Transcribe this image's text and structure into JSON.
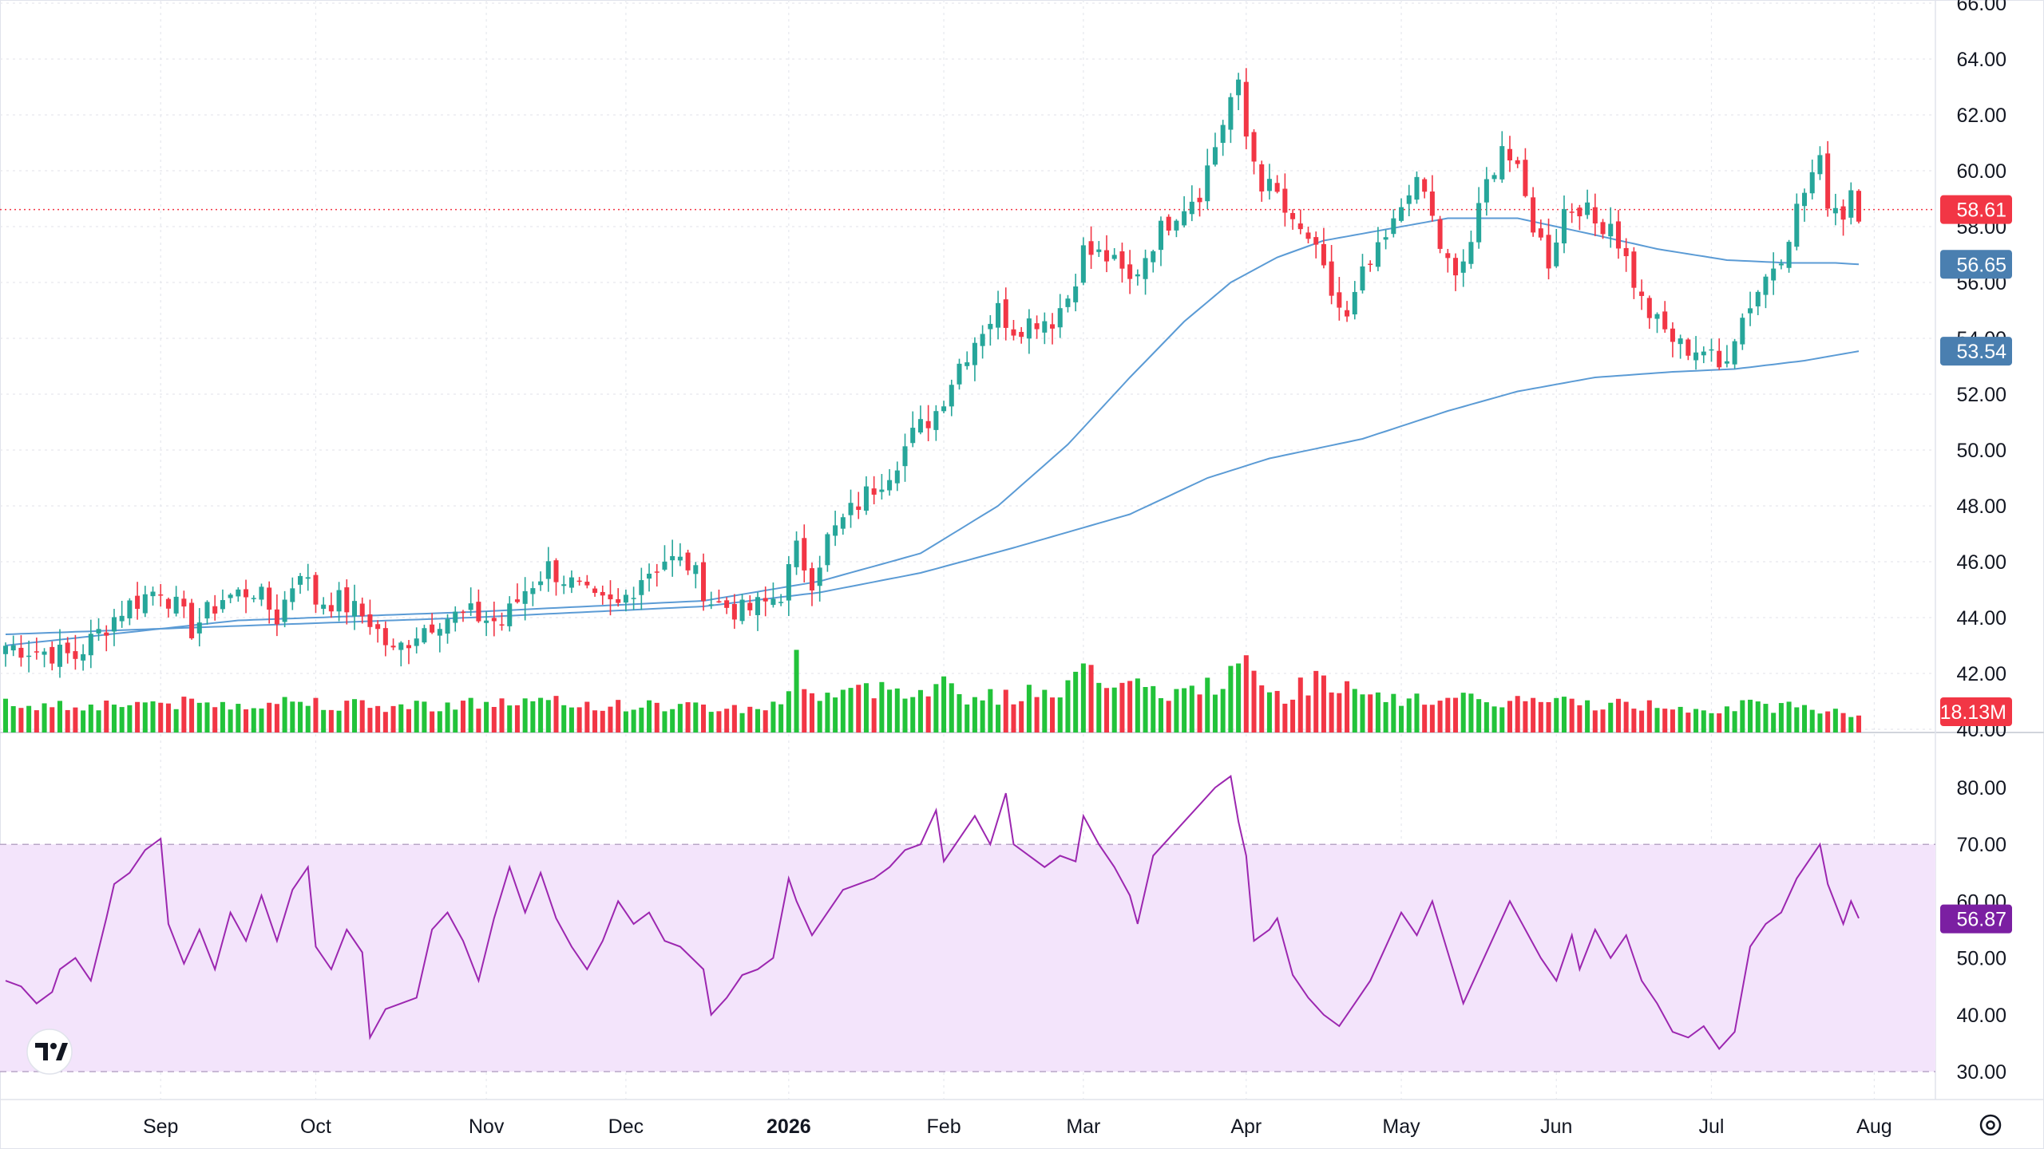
{
  "chart_data": {
    "type": "candlestick",
    "title": "",
    "price_axis": {
      "ylim": [
        40,
        66
      ],
      "ticks": [
        "66.00",
        "64.00",
        "62.00",
        "60.00",
        "58.00",
        "56.00",
        "54.00",
        "52.00",
        "50.00",
        "48.00",
        "46.00",
        "44.00",
        "42.00",
        "40.00"
      ]
    },
    "time_axis": {
      "labels": [
        {
          "label": "Sep",
          "index": 20,
          "bold": false
        },
        {
          "label": "Oct",
          "index": 40,
          "bold": false
        },
        {
          "label": "Nov",
          "index": 62,
          "bold": false
        },
        {
          "label": "Dec",
          "index": 80,
          "bold": false
        },
        {
          "label": "2026",
          "index": 101,
          "bold": true
        },
        {
          "label": "Feb",
          "index": 121,
          "bold": false
        },
        {
          "label": "Mar",
          "index": 139,
          "bold": false
        },
        {
          "label": "Apr",
          "index": 160,
          "bold": false
        },
        {
          "label": "May",
          "index": 180,
          "bold": false
        },
        {
          "label": "Jun",
          "index": 200,
          "bold": false
        },
        {
          "label": "Jul",
          "index": 220,
          "bold": false
        },
        {
          "label": "Aug",
          "index": 241,
          "bold": false
        }
      ]
    },
    "price_path": [
      [
        0,
        43.0
      ],
      [
        9,
        42.6
      ],
      [
        15,
        44.3
      ],
      [
        20,
        45.1
      ],
      [
        24,
        43.6
      ],
      [
        28,
        44.7
      ],
      [
        32,
        45.0
      ],
      [
        35,
        44.0
      ],
      [
        38,
        45.8
      ],
      [
        40,
        44.6
      ],
      [
        43,
        44.6
      ],
      [
        47,
        43.9
      ],
      [
        50,
        42.7
      ],
      [
        53,
        43.5
      ],
      [
        56,
        44.0
      ],
      [
        60,
        44.1
      ],
      [
        64,
        43.8
      ],
      [
        67,
        45.0
      ],
      [
        70,
        45.8
      ],
      [
        73,
        45.2
      ],
      [
        76,
        44.5
      ],
      [
        79,
        44.4
      ],
      [
        82,
        45.5
      ],
      [
        85,
        46.1
      ],
      [
        88,
        45.9
      ],
      [
        91,
        44.6
      ],
      [
        95,
        44.2
      ],
      [
        98,
        44.5
      ],
      [
        100,
        44.9
      ],
      [
        102,
        46.4
      ],
      [
        104,
        45.4
      ],
      [
        106,
        46.8
      ],
      [
        110,
        48.1
      ],
      [
        114,
        49.3
      ],
      [
        117,
        50.5
      ],
      [
        120,
        51.4
      ],
      [
        123,
        53.1
      ],
      [
        126,
        54.4
      ],
      [
        128,
        55.0
      ],
      [
        130,
        54.4
      ],
      [
        133,
        54.7
      ],
      [
        135,
        54.7
      ],
      [
        137,
        55.5
      ],
      [
        139,
        57.1
      ],
      [
        142,
        56.9
      ],
      [
        145,
        56.0
      ],
      [
        148,
        57.5
      ],
      [
        151,
        58.6
      ],
      [
        154,
        59.3
      ],
      [
        156,
        60.9
      ],
      [
        158,
        62.6
      ],
      [
        159,
        62.9
      ],
      [
        160,
        61.2
      ],
      [
        162,
        59.6
      ],
      [
        164,
        59.1
      ],
      [
        166,
        57.9
      ],
      [
        168,
        57.6
      ],
      [
        171,
        55.6
      ],
      [
        173,
        54.6
      ],
      [
        175,
        56.2
      ],
      [
        177,
        57.0
      ],
      [
        179,
        58.0
      ],
      [
        181,
        59.5
      ],
      [
        183,
        59.2
      ],
      [
        185,
        57.3
      ],
      [
        187,
        56.0
      ],
      [
        189,
        57.5
      ],
      [
        191,
        59.5
      ],
      [
        193,
        61.0
      ],
      [
        195,
        59.8
      ],
      [
        197,
        58.1
      ],
      [
        199,
        56.8
      ],
      [
        201,
        58.6
      ],
      [
        203,
        58.8
      ],
      [
        205,
        58.1
      ],
      [
        207,
        58.2
      ],
      [
        208,
        57.5
      ],
      [
        209,
        56.8
      ],
      [
        211,
        55.3
      ],
      [
        213,
        54.5
      ],
      [
        216,
        53.7
      ],
      [
        219,
        53.6
      ],
      [
        221,
        52.9
      ],
      [
        223,
        54.2
      ],
      [
        225,
        55.3
      ],
      [
        227,
        56.2
      ],
      [
        229,
        57.1
      ],
      [
        231,
        58.6
      ],
      [
        233,
        59.9
      ],
      [
        234,
        60.2
      ],
      [
        235,
        59.0
      ],
      [
        237,
        58.5
      ],
      [
        238,
        59.4
      ],
      [
        239,
        58.6
      ]
    ],
    "ma_fast": [
      [
        0,
        43.0
      ],
      [
        30,
        43.9
      ],
      [
        60,
        44.2
      ],
      [
        90,
        44.6
      ],
      [
        105,
        45.3
      ],
      [
        118,
        46.3
      ],
      [
        128,
        48.0
      ],
      [
        137,
        50.2
      ],
      [
        145,
        52.6
      ],
      [
        152,
        54.6
      ],
      [
        158,
        56.0
      ],
      [
        164,
        56.9
      ],
      [
        170,
        57.5
      ],
      [
        178,
        57.9
      ],
      [
        186,
        58.3
      ],
      [
        195,
        58.3
      ],
      [
        205,
        57.7
      ],
      [
        213,
        57.2
      ],
      [
        222,
        56.8
      ],
      [
        230,
        56.7
      ],
      [
        236,
        56.7
      ],
      [
        239,
        56.65
      ]
    ],
    "ma_slow": [
      [
        0,
        43.4
      ],
      [
        30,
        43.7
      ],
      [
        60,
        44.0
      ],
      [
        90,
        44.4
      ],
      [
        105,
        44.9
      ],
      [
        118,
        45.6
      ],
      [
        130,
        46.5
      ],
      [
        145,
        47.7
      ],
      [
        155,
        49.0
      ],
      [
        163,
        49.7
      ],
      [
        175,
        50.4
      ],
      [
        186,
        51.4
      ],
      [
        195,
        52.1
      ],
      [
        205,
        52.6
      ],
      [
        215,
        52.8
      ],
      [
        223,
        52.9
      ],
      [
        232,
        53.2
      ],
      [
        239,
        53.54
      ]
    ],
    "volume_profile": [
      [
        0,
        36
      ],
      [
        10,
        34
      ],
      [
        18,
        38
      ],
      [
        28,
        35
      ],
      [
        38,
        40
      ],
      [
        48,
        32
      ],
      [
        58,
        36
      ],
      [
        68,
        38
      ],
      [
        78,
        34
      ],
      [
        88,
        33
      ],
      [
        95,
        30
      ],
      [
        100,
        34
      ],
      [
        102,
        90
      ],
      [
        104,
        46
      ],
      [
        110,
        52
      ],
      [
        115,
        56
      ],
      [
        118,
        54
      ],
      [
        121,
        62
      ],
      [
        124,
        46
      ],
      [
        130,
        44
      ],
      [
        138,
        62
      ],
      [
        139,
        108
      ],
      [
        141,
        72
      ],
      [
        145,
        56
      ],
      [
        150,
        48
      ],
      [
        155,
        56
      ],
      [
        158,
        74
      ],
      [
        160,
        80
      ],
      [
        162,
        58
      ],
      [
        165,
        46
      ],
      [
        170,
        72
      ],
      [
        175,
        42
      ],
      [
        180,
        40
      ],
      [
        185,
        44
      ],
      [
        190,
        38
      ],
      [
        195,
        40
      ],
      [
        200,
        38
      ],
      [
        205,
        36
      ],
      [
        210,
        34
      ],
      [
        215,
        34
      ],
      [
        220,
        30
      ],
      [
        225,
        34
      ],
      [
        230,
        32
      ],
      [
        235,
        30
      ],
      [
        239,
        22
      ]
    ],
    "rsi": {
      "ylim": [
        30,
        80
      ],
      "ticks": [
        "80.00",
        "70.00",
        "60.00",
        "50.00",
        "40.00",
        "30.00"
      ],
      "band": [
        30,
        70
      ],
      "path": [
        [
          0,
          46
        ],
        [
          2,
          45
        ],
        [
          4,
          42
        ],
        [
          6,
          44
        ],
        [
          7,
          48
        ],
        [
          9,
          50
        ],
        [
          11,
          46
        ],
        [
          13,
          57
        ],
        [
          14,
          63
        ],
        [
          16,
          65
        ],
        [
          18,
          69
        ],
        [
          20,
          71
        ],
        [
          21,
          56
        ],
        [
          23,
          49
        ],
        [
          25,
          55
        ],
        [
          27,
          48
        ],
        [
          29,
          58
        ],
        [
          31,
          53
        ],
        [
          33,
          61
        ],
        [
          35,
          53
        ],
        [
          37,
          62
        ],
        [
          39,
          66
        ],
        [
          40,
          52
        ],
        [
          42,
          48
        ],
        [
          44,
          55
        ],
        [
          46,
          51
        ],
        [
          47,
          36
        ],
        [
          49,
          41
        ],
        [
          51,
          42
        ],
        [
          53,
          43
        ],
        [
          55,
          55
        ],
        [
          57,
          58
        ],
        [
          59,
          53
        ],
        [
          61,
          46
        ],
        [
          63,
          57
        ],
        [
          65,
          66
        ],
        [
          67,
          58
        ],
        [
          69,
          65
        ],
        [
          71,
          57
        ],
        [
          73,
          52
        ],
        [
          75,
          48
        ],
        [
          77,
          53
        ],
        [
          79,
          60
        ],
        [
          81,
          56
        ],
        [
          83,
          58
        ],
        [
          85,
          53
        ],
        [
          87,
          52
        ],
        [
          90,
          48
        ],
        [
          91,
          40
        ],
        [
          93,
          43
        ],
        [
          95,
          47
        ],
        [
          97,
          48
        ],
        [
          99,
          50
        ],
        [
          101,
          64
        ],
        [
          102,
          60
        ],
        [
          104,
          54
        ],
        [
          106,
          58
        ],
        [
          108,
          62
        ],
        [
          110,
          63
        ],
        [
          112,
          64
        ],
        [
          114,
          66
        ],
        [
          116,
          69
        ],
        [
          118,
          70
        ],
        [
          120,
          76
        ],
        [
          121,
          67
        ],
        [
          123,
          71
        ],
        [
          125,
          75
        ],
        [
          127,
          70
        ],
        [
          129,
          79
        ],
        [
          130,
          70
        ],
        [
          132,
          68
        ],
        [
          134,
          66
        ],
        [
          136,
          68
        ],
        [
          138,
          67
        ],
        [
          139,
          75
        ],
        [
          141,
          70
        ],
        [
          143,
          66
        ],
        [
          145,
          61
        ],
        [
          146,
          56
        ],
        [
          148,
          68
        ],
        [
          150,
          71
        ],
        [
          152,
          74
        ],
        [
          154,
          77
        ],
        [
          156,
          80
        ],
        [
          158,
          82
        ],
        [
          159,
          74
        ],
        [
          160,
          68
        ],
        [
          161,
          53
        ],
        [
          163,
          55
        ],
        [
          164,
          57
        ],
        [
          166,
          47
        ],
        [
          168,
          43
        ],
        [
          170,
          40
        ],
        [
          172,
          38
        ],
        [
          174,
          42
        ],
        [
          176,
          46
        ],
        [
          178,
          52
        ],
        [
          180,
          58
        ],
        [
          182,
          54
        ],
        [
          184,
          60
        ],
        [
          186,
          51
        ],
        [
          188,
          42
        ],
        [
          190,
          48
        ],
        [
          192,
          54
        ],
        [
          194,
          60
        ],
        [
          196,
          55
        ],
        [
          198,
          50
        ],
        [
          200,
          46
        ],
        [
          202,
          54
        ],
        [
          203,
          48
        ],
        [
          205,
          55
        ],
        [
          207,
          50
        ],
        [
          209,
          54
        ],
        [
          211,
          46
        ],
        [
          213,
          42
        ],
        [
          215,
          37
        ],
        [
          217,
          36
        ],
        [
          219,
          38
        ],
        [
          221,
          34
        ],
        [
          223,
          37
        ],
        [
          225,
          52
        ],
        [
          227,
          56
        ],
        [
          229,
          58
        ],
        [
          231,
          64
        ],
        [
          233,
          68
        ],
        [
          234,
          70
        ],
        [
          235,
          63
        ],
        [
          237,
          56
        ],
        [
          238,
          60
        ],
        [
          239,
          57
        ]
      ]
    },
    "badges": {
      "last_price": "58.61",
      "ma_fast": "56.65",
      "ma_slow": "53.54",
      "volume": "18.13M",
      "rsi": "56.87"
    },
    "colors": {
      "up": "#26a69a",
      "up_green": "#22c33a",
      "down": "#f23645",
      "ma": "#5b9bd5",
      "ma_badge": "#4a7fb0",
      "rsi_line": "#9c27b0",
      "rsi_band": "#f3e4fb",
      "rsi_badge": "#7b1fa2"
    }
  }
}
